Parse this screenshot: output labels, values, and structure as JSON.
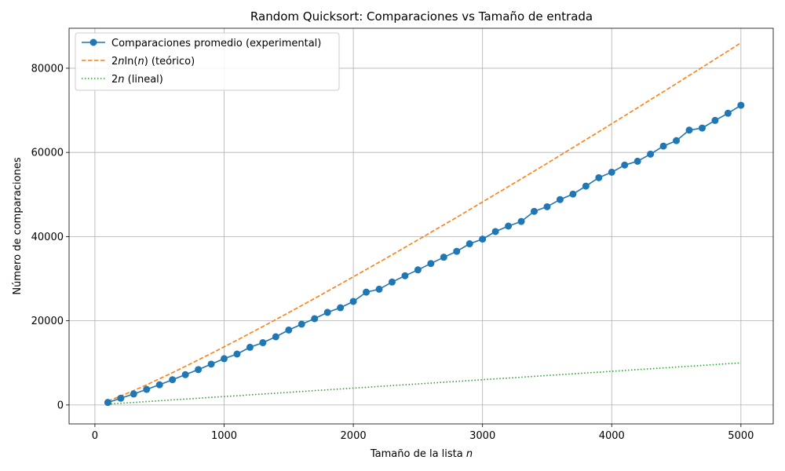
{
  "chart_data": {
    "type": "line",
    "title": "Random Quicksort: Comparaciones vs Tamaño de entrada",
    "xlabel": "Tamaño de la lista n",
    "ylabel": "Número de comparaciones",
    "xlim": [
      -200,
      5250
    ],
    "ylim": [
      -4500,
      89500
    ],
    "xticks": [
      0,
      1000,
      2000,
      3000,
      4000,
      5000
    ],
    "yticks": [
      0,
      20000,
      40000,
      60000,
      80000
    ],
    "grid": true,
    "legend_position": "top-left",
    "x": [
      100,
      200,
      300,
      400,
      500,
      600,
      700,
      800,
      900,
      1000,
      1100,
      1200,
      1300,
      1400,
      1500,
      1600,
      1700,
      1800,
      1900,
      2000,
      2100,
      2200,
      2300,
      2400,
      2500,
      2600,
      2700,
      2800,
      2900,
      3000,
      3100,
      3200,
      3300,
      3400,
      3500,
      3600,
      3700,
      3800,
      3900,
      4000,
      4100,
      4200,
      4300,
      4400,
      4500,
      4600,
      4700,
      4800,
      4900,
      5000
    ],
    "series": [
      {
        "name": "Comparaciones promedio (experimental)",
        "style": "solid-markers",
        "color": "#1f77b4",
        "values": [
          600,
          1600,
          2600,
          3700,
          4800,
          6000,
          7200,
          8400,
          9700,
          11000,
          12100,
          13700,
          14800,
          16200,
          17800,
          19200,
          20500,
          22000,
          23100,
          24600,
          26800,
          27500,
          29200,
          30700,
          32100,
          33600,
          35100,
          36500,
          38300,
          39400,
          41200,
          42500,
          43600,
          46000,
          47100,
          48800,
          50100,
          52000,
          54000,
          55300,
          57000,
          57900,
          59600,
          61500,
          62800,
          65300,
          65800,
          67600,
          69300,
          71200
        ]
      },
      {
        "name": "2nln(n) (teórico)",
        "style": "dashed",
        "color": "#ff7f0e",
        "values": [
          921,
          2119,
          3422,
          4793,
          6215,
          7677,
          9172,
          10695,
          12244,
          13816,
          15408,
          17019,
          18648,
          20292,
          21952,
          23626,
          25313,
          27012,
          28724,
          30447,
          32181,
          33926,
          35681,
          37446,
          39220,
          41003,
          42796,
          44597,
          46406,
          48224,
          50049,
          51883,
          53724,
          55573,
          57429,
          59292,
          61162,
          63039,
          64923,
          66813,
          68710,
          70613,
          72521,
          74436,
          76357,
          78284,
          80216,
          82154,
          84098,
          86047
        ]
      },
      {
        "name": "2n (lineal)",
        "style": "dotted",
        "color": "#2ca02c",
        "values": [
          200,
          400,
          600,
          800,
          1000,
          1200,
          1400,
          1600,
          1800,
          2000,
          2200,
          2400,
          2600,
          2800,
          3000,
          3200,
          3400,
          3600,
          3800,
          4000,
          4200,
          4400,
          4600,
          4800,
          5000,
          5200,
          5400,
          5600,
          5800,
          6000,
          6200,
          6400,
          6600,
          6800,
          7000,
          7200,
          7400,
          7600,
          7800,
          8000,
          8200,
          8400,
          8600,
          8800,
          9000,
          9200,
          9400,
          9600,
          9800,
          10000
        ]
      }
    ],
    "legend_labels": {
      "experimental": "Comparaciones promedio (experimental)",
      "theory_prefix": "2",
      "theory_n": "n",
      "theory_ln": "ln(",
      "theory_n2": "n",
      "theory_suffix": ") (teórico)",
      "linear_prefix": "2",
      "linear_n": "n",
      "linear_suffix": " (lineal)"
    },
    "xlabel_parts": {
      "text": "Tamaño de la lista ",
      "var": "n"
    }
  },
  "colors": {
    "axes": "#000000",
    "grid": "#b0b0b0",
    "legend_border": "#cccccc"
  }
}
